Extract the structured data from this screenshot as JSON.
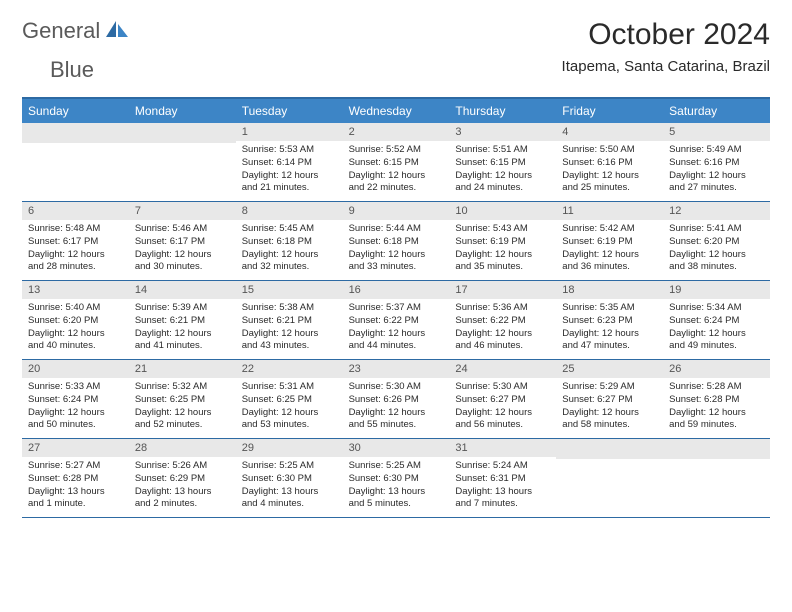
{
  "brand": {
    "word1": "General",
    "word2": "Blue"
  },
  "title": "October 2024",
  "location": "Itapema, Santa Catarina, Brazil",
  "weekdays": [
    "Sunday",
    "Monday",
    "Tuesday",
    "Wednesday",
    "Thursday",
    "Friday",
    "Saturday"
  ],
  "colors": {
    "brand_gray": "#5a5a5a",
    "brand_blue": "#3a78b5",
    "header_bg": "#3d85c6",
    "border": "#2d6aa3",
    "daynum_bg": "#e8e8e8",
    "text": "#2a2a2a"
  },
  "weeks": [
    [
      {
        "n": "",
        "empty": true
      },
      {
        "n": "",
        "empty": true
      },
      {
        "n": "1",
        "sr": "5:53 AM",
        "ss": "6:14 PM",
        "dl": "12 hours and 21 minutes."
      },
      {
        "n": "2",
        "sr": "5:52 AM",
        "ss": "6:15 PM",
        "dl": "12 hours and 22 minutes."
      },
      {
        "n": "3",
        "sr": "5:51 AM",
        "ss": "6:15 PM",
        "dl": "12 hours and 24 minutes."
      },
      {
        "n": "4",
        "sr": "5:50 AM",
        "ss": "6:16 PM",
        "dl": "12 hours and 25 minutes."
      },
      {
        "n": "5",
        "sr": "5:49 AM",
        "ss": "6:16 PM",
        "dl": "12 hours and 27 minutes."
      }
    ],
    [
      {
        "n": "6",
        "sr": "5:48 AM",
        "ss": "6:17 PM",
        "dl": "12 hours and 28 minutes."
      },
      {
        "n": "7",
        "sr": "5:46 AM",
        "ss": "6:17 PM",
        "dl": "12 hours and 30 minutes."
      },
      {
        "n": "8",
        "sr": "5:45 AM",
        "ss": "6:18 PM",
        "dl": "12 hours and 32 minutes."
      },
      {
        "n": "9",
        "sr": "5:44 AM",
        "ss": "6:18 PM",
        "dl": "12 hours and 33 minutes."
      },
      {
        "n": "10",
        "sr": "5:43 AM",
        "ss": "6:19 PM",
        "dl": "12 hours and 35 minutes."
      },
      {
        "n": "11",
        "sr": "5:42 AM",
        "ss": "6:19 PM",
        "dl": "12 hours and 36 minutes."
      },
      {
        "n": "12",
        "sr": "5:41 AM",
        "ss": "6:20 PM",
        "dl": "12 hours and 38 minutes."
      }
    ],
    [
      {
        "n": "13",
        "sr": "5:40 AM",
        "ss": "6:20 PM",
        "dl": "12 hours and 40 minutes."
      },
      {
        "n": "14",
        "sr": "5:39 AM",
        "ss": "6:21 PM",
        "dl": "12 hours and 41 minutes."
      },
      {
        "n": "15",
        "sr": "5:38 AM",
        "ss": "6:21 PM",
        "dl": "12 hours and 43 minutes."
      },
      {
        "n": "16",
        "sr": "5:37 AM",
        "ss": "6:22 PM",
        "dl": "12 hours and 44 minutes."
      },
      {
        "n": "17",
        "sr": "5:36 AM",
        "ss": "6:22 PM",
        "dl": "12 hours and 46 minutes."
      },
      {
        "n": "18",
        "sr": "5:35 AM",
        "ss": "6:23 PM",
        "dl": "12 hours and 47 minutes."
      },
      {
        "n": "19",
        "sr": "5:34 AM",
        "ss": "6:24 PM",
        "dl": "12 hours and 49 minutes."
      }
    ],
    [
      {
        "n": "20",
        "sr": "5:33 AM",
        "ss": "6:24 PM",
        "dl": "12 hours and 50 minutes."
      },
      {
        "n": "21",
        "sr": "5:32 AM",
        "ss": "6:25 PM",
        "dl": "12 hours and 52 minutes."
      },
      {
        "n": "22",
        "sr": "5:31 AM",
        "ss": "6:25 PM",
        "dl": "12 hours and 53 minutes."
      },
      {
        "n": "23",
        "sr": "5:30 AM",
        "ss": "6:26 PM",
        "dl": "12 hours and 55 minutes."
      },
      {
        "n": "24",
        "sr": "5:30 AM",
        "ss": "6:27 PM",
        "dl": "12 hours and 56 minutes."
      },
      {
        "n": "25",
        "sr": "5:29 AM",
        "ss": "6:27 PM",
        "dl": "12 hours and 58 minutes."
      },
      {
        "n": "26",
        "sr": "5:28 AM",
        "ss": "6:28 PM",
        "dl": "12 hours and 59 minutes."
      }
    ],
    [
      {
        "n": "27",
        "sr": "5:27 AM",
        "ss": "6:28 PM",
        "dl": "13 hours and 1 minute."
      },
      {
        "n": "28",
        "sr": "5:26 AM",
        "ss": "6:29 PM",
        "dl": "13 hours and 2 minutes."
      },
      {
        "n": "29",
        "sr": "5:25 AM",
        "ss": "6:30 PM",
        "dl": "13 hours and 4 minutes."
      },
      {
        "n": "30",
        "sr": "5:25 AM",
        "ss": "6:30 PM",
        "dl": "13 hours and 5 minutes."
      },
      {
        "n": "31",
        "sr": "5:24 AM",
        "ss": "6:31 PM",
        "dl": "13 hours and 7 minutes."
      },
      {
        "n": "",
        "empty": true
      },
      {
        "n": "",
        "empty": true
      }
    ]
  ],
  "labels": {
    "sr": "Sunrise:",
    "ss": "Sunset:",
    "dl": "Daylight:"
  }
}
